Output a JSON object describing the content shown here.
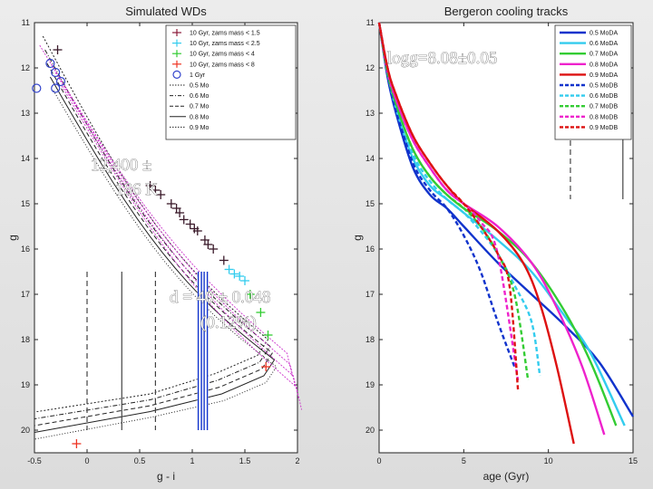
{
  "chart_data": [
    {
      "type": "scatter",
      "title": "Simulated WDs",
      "xlabel": "g - i",
      "ylabel": "g",
      "xlim": [
        -0.5,
        2
      ],
      "ylim": [
        20.5,
        11
      ],
      "y_inverted": true,
      "grid": false,
      "legend_position": "top-right",
      "xticks": [
        "-0.5",
        "0",
        "0.5",
        "1",
        "1.5",
        "2"
      ],
      "yticks": [
        "11",
        "12",
        "13",
        "14",
        "15",
        "16",
        "17",
        "18",
        "19",
        "20"
      ],
      "legend": [
        {
          "label": "10 Gyr, zams mass < 1.5",
          "color": "#8b1a3a",
          "marker": "plus"
        },
        {
          "label": "10 Gyr, zams mass < 2.5",
          "color": "#33ccee",
          "marker": "plus"
        },
        {
          "label": "10 Gyr, zams mass < 4",
          "color": "#33cc33",
          "marker": "plus"
        },
        {
          "label": "10 Gyr, zams mass < 8",
          "color": "#ee3322",
          "marker": "plus"
        },
        {
          "label": "1 Gyr",
          "color": "#3344cc",
          "marker": "circle"
        },
        {
          "label": "0.5 Mo",
          "color": "#222222",
          "line": "dotted"
        },
        {
          "label": "0.6 Mo",
          "color": "#222222",
          "line": "dashdot"
        },
        {
          "label": "0.7 Mo",
          "color": "#222222",
          "line": "dashed"
        },
        {
          "label": "0.8 Mo",
          "color": "#222222",
          "line": "solid"
        },
        {
          "label": "0.9 Mo",
          "color": "#222222",
          "line": "dotted"
        }
      ],
      "series": [
        {
          "color": "#3a1a2a",
          "marker": "plus",
          "x": [
            -0.28,
            0.6,
            0.65,
            0.7,
            0.8,
            0.85,
            0.88,
            0.92,
            0.98,
            1.02,
            1.05,
            1.12,
            1.15,
            1.2,
            1.3
          ],
          "y": [
            11.6,
            14.6,
            14.7,
            14.8,
            15.0,
            15.1,
            15.2,
            15.35,
            15.45,
            15.55,
            15.6,
            15.8,
            15.9,
            16.0,
            16.25
          ]
        },
        {
          "color": "#33ccee",
          "marker": "plus",
          "x": [
            1.35,
            1.4,
            1.45,
            1.5
          ],
          "y": [
            16.45,
            16.55,
            16.6,
            16.7
          ]
        },
        {
          "color": "#33cc33",
          "marker": "plus",
          "x": [
            1.55,
            1.65,
            1.72
          ],
          "y": [
            17.0,
            17.4,
            17.9
          ]
        },
        {
          "color": "#ee3322",
          "marker": "plus",
          "x": [
            1.7,
            -0.1
          ],
          "y": [
            18.6,
            20.3
          ]
        },
        {
          "color": "#3344cc",
          "marker": "circle",
          "x": [
            -0.35,
            -0.3,
            -0.25,
            -0.48,
            -0.3
          ],
          "y": [
            11.9,
            12.1,
            12.3,
            12.45,
            12.45
          ]
        }
      ],
      "vlines": [
        {
          "x": 0.0,
          "style": "dashed",
          "y_from": 16.5,
          "y_to": 20.0
        },
        {
          "x": 0.33,
          "style": "solid",
          "y_from": 16.5,
          "y_to": 20.0
        },
        {
          "x": 0.65,
          "style": "dashed",
          "y_from": 16.5,
          "y_to": 20.0
        },
        {
          "x": 1.1,
          "style": "blue-band",
          "y_from": 16.5,
          "y_to": 20.0
        }
      ],
      "annotations": [
        "12,400 ± 186 K",
        "d = 40 ± 0.048 (0.12%)"
      ]
    },
    {
      "type": "line",
      "title": "Bergeron cooling tracks",
      "xlabel": "age (Gyr)",
      "ylabel": "g",
      "xlim": [
        0,
        15
      ],
      "ylim": [
        20.5,
        11
      ],
      "y_inverted": true,
      "grid": false,
      "legend_position": "top-right",
      "xticks": [
        "0",
        "5",
        "10",
        "15"
      ],
      "yticks": [
        "11",
        "12",
        "13",
        "14",
        "15",
        "16",
        "17",
        "18",
        "19",
        "20"
      ],
      "annotations": [
        "logg=8.08±0.05"
      ],
      "vlines": [
        {
          "x": 11.3,
          "style": "dashed",
          "y_from": 13.0,
          "y_to": 14.9
        },
        {
          "x": 14.4,
          "style": "solid",
          "y_from": 13.0,
          "y_to": 14.9
        }
      ],
      "series": [
        {
          "name": "0.5 MoDA",
          "color": "#1133cc",
          "dash": "solid",
          "x": [
            0,
            0.5,
            1,
            2,
            3,
            4,
            5,
            7,
            9,
            11,
            13,
            15
          ],
          "y": [
            11.0,
            12.2,
            13.0,
            14.2,
            14.8,
            15.1,
            15.5,
            16.3,
            17.0,
            17.7,
            18.5,
            19.7
          ]
        },
        {
          "name": "0.6 MoDA",
          "color": "#33ccee",
          "dash": "solid",
          "x": [
            0,
            0.5,
            1,
            2,
            3,
            4,
            5,
            7,
            9,
            11,
            12.5,
            14.5
          ],
          "y": [
            11.0,
            12.1,
            12.9,
            14.0,
            14.6,
            14.9,
            15.2,
            15.8,
            16.5,
            17.5,
            18.3,
            19.9
          ]
        },
        {
          "name": "0.7 MoDA",
          "color": "#33cc33",
          "dash": "solid",
          "x": [
            0,
            0.5,
            1,
            2,
            3,
            4,
            5,
            7,
            9,
            11,
            12.5,
            14
          ],
          "y": [
            11.0,
            12.1,
            12.8,
            13.8,
            14.4,
            14.8,
            15.1,
            15.6,
            16.3,
            17.4,
            18.5,
            19.9
          ]
        },
        {
          "name": "0.8 MoDA",
          "color": "#ee22cc",
          "dash": "solid",
          "x": [
            0,
            0.5,
            1,
            2,
            3,
            4,
            5,
            7,
            9,
            10.5,
            12,
            13.3
          ],
          "y": [
            11.0,
            12.1,
            12.7,
            13.6,
            14.2,
            14.7,
            15.0,
            15.5,
            16.3,
            17.3,
            18.6,
            20.1
          ]
        },
        {
          "name": "0.9 MoDA",
          "color": "#dd1111",
          "dash": "solid",
          "x": [
            0,
            0.5,
            1,
            2,
            3,
            4,
            5,
            7,
            8.5,
            9.5,
            10.5,
            11.5
          ],
          "y": [
            11.0,
            12.0,
            12.6,
            13.5,
            14.1,
            14.6,
            15.0,
            15.6,
            16.3,
            17.2,
            18.6,
            20.3
          ]
        },
        {
          "name": "0.5 MoDB",
          "color": "#1133cc",
          "dash": "dashed",
          "x": [
            0,
            0.5,
            1,
            2,
            3,
            4,
            5,
            6,
            7,
            8
          ],
          "y": [
            11.0,
            12.1,
            12.9,
            14.1,
            14.7,
            15.1,
            15.7,
            16.5,
            17.6,
            18.6
          ]
        },
        {
          "name": "0.6 MoDB",
          "color": "#33ccee",
          "dash": "dashed",
          "x": [
            0,
            0.5,
            1,
            2,
            3,
            4,
            5,
            6,
            7,
            8,
            9,
            9.5
          ],
          "y": [
            11.0,
            12.1,
            12.8,
            13.9,
            14.5,
            14.9,
            15.2,
            15.6,
            16.1,
            16.8,
            17.6,
            18.8
          ]
        },
        {
          "name": "0.7 MoDB",
          "color": "#33cc33",
          "dash": "dashed",
          "x": [
            0,
            0.5,
            1,
            2,
            3,
            4,
            5,
            6,
            7,
            8,
            8.8
          ],
          "y": [
            11.0,
            12.1,
            12.8,
            13.8,
            14.4,
            14.8,
            15.1,
            15.5,
            16.1,
            17.0,
            18.9
          ]
        },
        {
          "name": "0.8 MoDB",
          "color": "#ee22cc",
          "dash": "dashed",
          "x": [
            0,
            0.5,
            1,
            2,
            3,
            4,
            5,
            6,
            7,
            8.2
          ],
          "y": [
            11.0,
            12.0,
            12.7,
            13.6,
            14.2,
            14.7,
            15.0,
            15.4,
            16.1,
            18.9
          ]
        },
        {
          "name": "0.9 MoDB",
          "color": "#dd1111",
          "dash": "dashed",
          "x": [
            0,
            0.5,
            1,
            2,
            3,
            4,
            5,
            6,
            7,
            7.7,
            8.2
          ],
          "y": [
            11.0,
            12.0,
            12.6,
            13.5,
            14.1,
            14.6,
            15.0,
            15.5,
            16.1,
            16.8,
            19.1
          ]
        }
      ]
    }
  ]
}
